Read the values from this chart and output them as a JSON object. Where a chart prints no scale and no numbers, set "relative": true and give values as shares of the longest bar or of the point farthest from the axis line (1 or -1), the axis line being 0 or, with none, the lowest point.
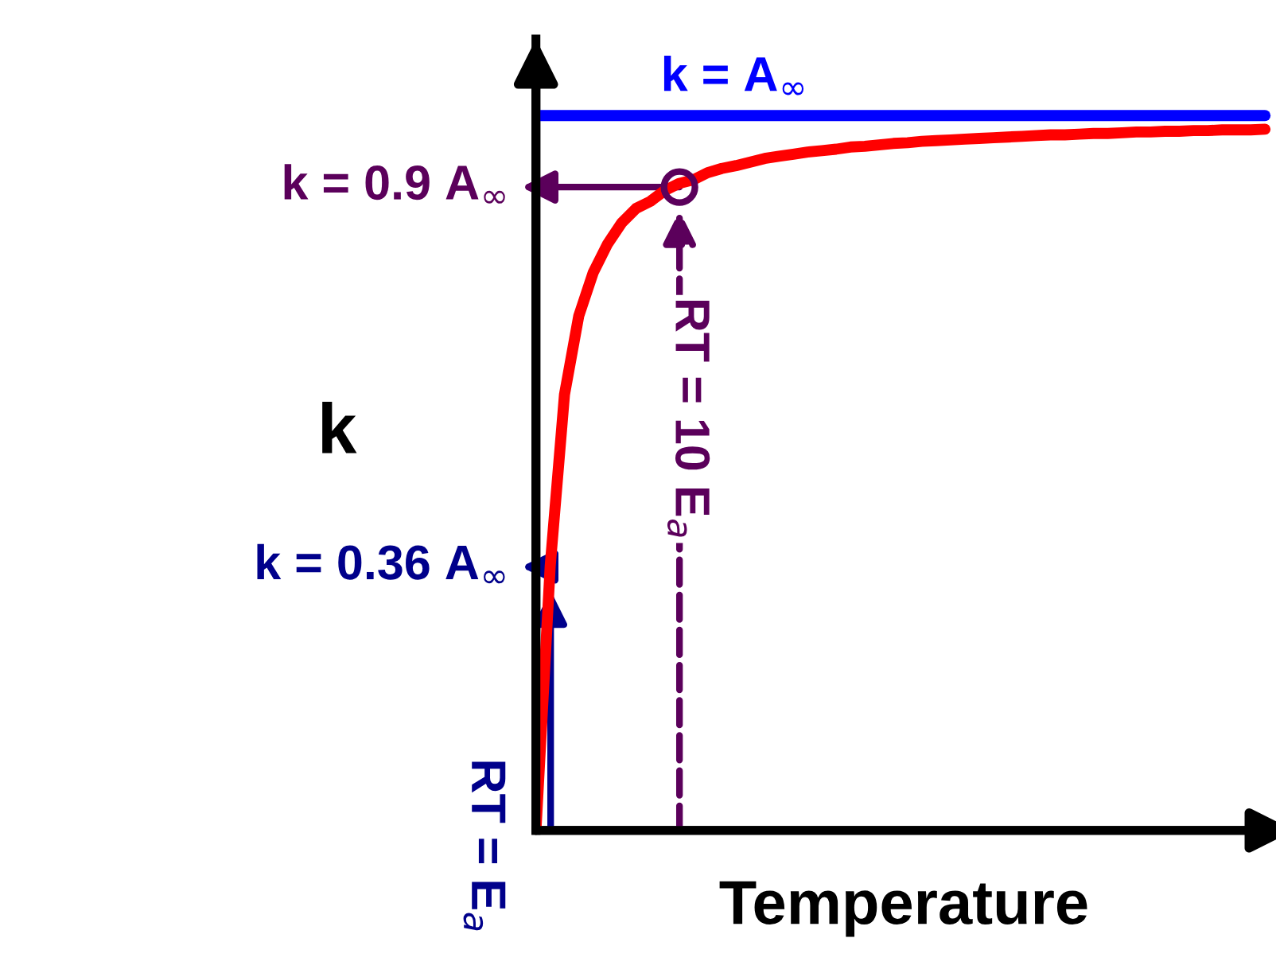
{
  "chart_data": {
    "type": "line",
    "relative": true,
    "xlabel": "Temperature",
    "ylabel": "k",
    "categories": [
      null,
      null,
      null,
      null,
      null,
      null,
      null,
      null,
      null,
      null,
      null,
      null,
      null,
      null,
      null,
      null,
      null,
      null,
      null,
      null,
      null,
      null,
      null,
      null,
      null,
      null,
      null,
      null,
      null,
      null,
      null,
      null,
      null,
      null,
      null,
      null,
      null,
      null,
      null,
      null,
      null,
      null,
      null,
      null,
      null,
      null,
      null,
      null,
      null,
      null,
      null,
      null
    ],
    "series": [
      {
        "color": "#ff0000",
        "values": [
          0,
          0.37,
          0.61,
          0.72,
          0.78,
          0.82,
          0.85,
          0.87,
          0.88,
          0.895,
          0.905,
          0.91,
          0.92,
          0.926,
          0.93,
          0.935,
          0.94,
          0.943,
          0.946,
          0.949,
          0.951,
          0.953,
          0.956,
          0.957,
          0.959,
          0.961,
          0.962,
          0.964,
          0.965,
          0.966,
          0.967,
          0.968,
          0.969,
          0.97,
          0.971,
          0.972,
          0.973,
          0.973,
          0.974,
          0.975,
          0.975,
          0.976,
          0.977,
          0.977,
          0.978,
          0.978,
          0.979,
          0.979,
          0.98,
          0.98,
          0.98,
          0.981
        ]
      },
      {
        "name": "k = A$_{∞}$",
        "color": "#0000ff",
        "values": [
          1,
          1,
          1,
          1,
          1,
          1,
          1,
          1,
          1,
          1,
          1,
          1,
          1,
          1,
          1,
          1,
          1,
          1,
          1,
          1,
          1,
          1,
          1,
          1,
          1,
          1,
          1,
          1,
          1,
          1,
          1,
          1,
          1,
          1,
          1,
          1,
          1,
          1,
          1,
          1,
          1,
          1,
          1,
          1,
          1,
          1,
          1,
          1,
          1,
          1,
          1,
          1
        ]
      }
    ],
    "annotations": [
      "k = 0.9 A$_{∞}$",
      "RT = 10 E$_{a}$",
      "k = 0.36 A$_{∞}$",
      "RT = E$_{a}$"
    ]
  }
}
